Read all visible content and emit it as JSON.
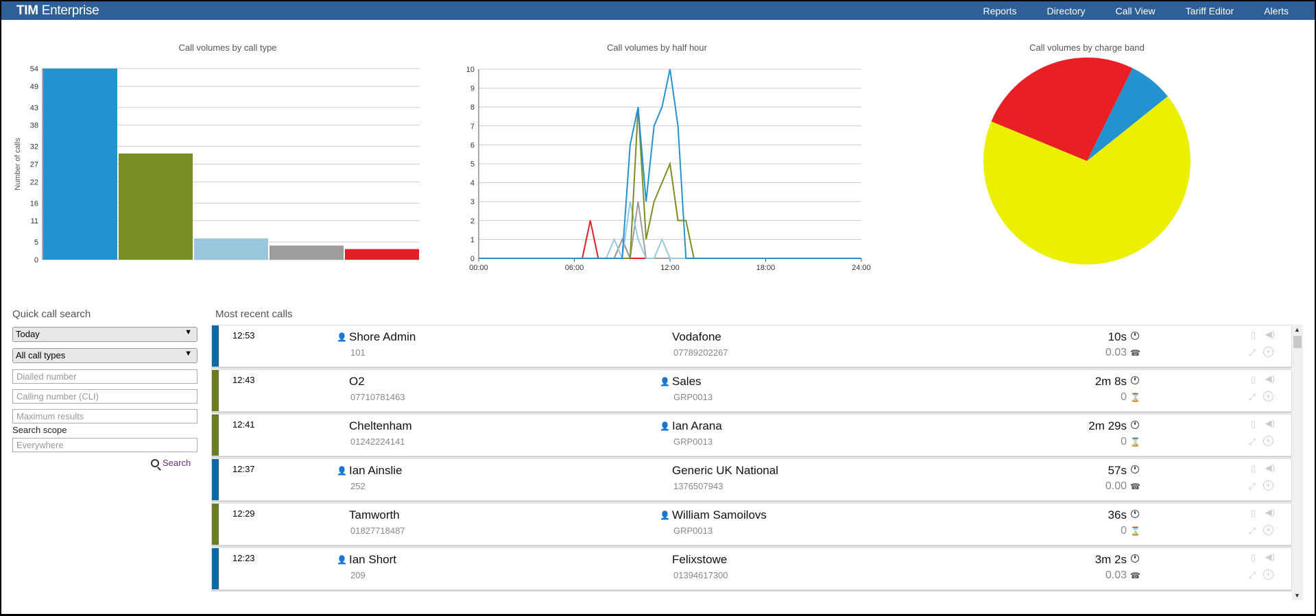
{
  "header": {
    "brand_bold": "TIM",
    "brand_rest": " Enterprise",
    "nav": [
      "Reports",
      "Directory",
      "Call View",
      "Tariff Editor",
      "Alerts"
    ]
  },
  "charts": {
    "by_call_type": {
      "title": "Call volumes by call type",
      "ylabel": "Number of calls"
    },
    "by_half_hour": {
      "title": "Call volumes by half hour"
    },
    "by_charge_band": {
      "title": "Call volumes by charge band"
    }
  },
  "chart_data": [
    {
      "type": "bar",
      "title": "Call volumes by call type",
      "ylabel": "Number of calls",
      "yticks": [
        0,
        5,
        11,
        16,
        22,
        27,
        32,
        38,
        43,
        49,
        54
      ],
      "ylim": [
        0,
        54
      ],
      "values": [
        54,
        30,
        6,
        4,
        3
      ],
      "colors": [
        "#2592d0",
        "#788f25",
        "#9ac7de",
        "#9d9d9d",
        "#e21f26"
      ],
      "grid": true
    },
    {
      "type": "line",
      "title": "Call volumes by half hour",
      "ylim": [
        0,
        10
      ],
      "yticks": [
        0,
        1,
        2,
        3,
        4,
        5,
        6,
        7,
        8,
        9,
        10
      ],
      "xticks": [
        "00:00",
        "06:00",
        "12:00",
        "18:00",
        "24:00"
      ],
      "x_hours": [
        0,
        0.5,
        1,
        1.5,
        2,
        2.5,
        3,
        3.5,
        4,
        4.5,
        5,
        5.5,
        6,
        6.5,
        7,
        7.5,
        8,
        8.5,
        9,
        9.5,
        10,
        10.5,
        11,
        11.5,
        12,
        12.5,
        13,
        13.5,
        14,
        14.5,
        15,
        15.5,
        16,
        16.5,
        17,
        17.5,
        18,
        18.5,
        19,
        19.5,
        20,
        20.5,
        21,
        21.5,
        22,
        22.5,
        23,
        23.5,
        24
      ],
      "series": [
        {
          "color": "#2592d0",
          "values": [
            0,
            0,
            0,
            0,
            0,
            0,
            0,
            0,
            0,
            0,
            0,
            0,
            0,
            0,
            0,
            0,
            0,
            0,
            0,
            6,
            8,
            3,
            7,
            8,
            10,
            7,
            0,
            0,
            0,
            0,
            0,
            0,
            0,
            0,
            0,
            0,
            0,
            0,
            0,
            0,
            0,
            0,
            0,
            0,
            0,
            0,
            0,
            0,
            0
          ]
        },
        {
          "color": "#788f25",
          "values": [
            0,
            0,
            0,
            0,
            0,
            0,
            0,
            0,
            0,
            0,
            0,
            0,
            0,
            0,
            0,
            0,
            0,
            0,
            0,
            0,
            8,
            1,
            3,
            4,
            5,
            2,
            2,
            0,
            0,
            0,
            0,
            0,
            0,
            0,
            0,
            0,
            0,
            0,
            0,
            0,
            0,
            0,
            0,
            0,
            0,
            0,
            0,
            0,
            0
          ]
        },
        {
          "color": "#9ac7de",
          "values": [
            0,
            0,
            0,
            0,
            0,
            0,
            0,
            0,
            0,
            0,
            0,
            0,
            0,
            0,
            0,
            0,
            0,
            1,
            0,
            3,
            1,
            0,
            0,
            1,
            0,
            0,
            0,
            0,
            0,
            0,
            0,
            0,
            0,
            0,
            0,
            0,
            0,
            0,
            0,
            0,
            0,
            0,
            0,
            0,
            0,
            0,
            0,
            0,
            0
          ]
        },
        {
          "color": "#9d9d9d",
          "values": [
            0,
            0,
            0,
            0,
            0,
            0,
            0,
            0,
            0,
            0,
            0,
            0,
            0,
            0,
            0,
            0,
            0,
            0,
            1,
            0,
            3,
            0,
            0,
            0,
            0,
            0,
            0,
            0,
            0,
            0,
            0,
            0,
            0,
            0,
            0,
            0,
            0,
            0,
            0,
            0,
            0,
            0,
            0,
            0,
            0,
            0,
            0,
            0,
            0
          ]
        },
        {
          "color": "#e21f26",
          "values": [
            0,
            0,
            0,
            0,
            0,
            0,
            0,
            0,
            0,
            0,
            0,
            0,
            0,
            0,
            2,
            0,
            0,
            0,
            1,
            0,
            0,
            0,
            0,
            0,
            0,
            0,
            0,
            0,
            0,
            0,
            0,
            0,
            0,
            0,
            0,
            0,
            0,
            0,
            0,
            0,
            0,
            0,
            0,
            0,
            0,
            0,
            0,
            0,
            0
          ]
        }
      ],
      "grid": true
    },
    {
      "type": "pie",
      "title": "Call volumes by charge band",
      "slices": [
        {
          "value": 7,
          "color": "#2592d0"
        },
        {
          "value": 26,
          "color": "#ea1f23"
        },
        {
          "value": 67,
          "color": "#eaf000"
        }
      ]
    }
  ],
  "search": {
    "title": "Quick call search",
    "date_select": "Today",
    "type_select": "All call types",
    "dialled_placeholder": "Dialled number",
    "cli_placeholder": "Calling number (CLI)",
    "max_placeholder": "Maximum results",
    "scope_label": "Search scope",
    "scope_placeholder": "Everywhere",
    "button": "Search"
  },
  "recent": {
    "title": "Most recent calls",
    "calls": [
      {
        "time": "12:53",
        "from_name": "Shore Admin",
        "from_num": "101",
        "from_user": true,
        "to_name": "Vodafone",
        "to_num": "07789202267",
        "to_user": false,
        "duration": "10s",
        "cost": "0.03",
        "color": "#0c69a8",
        "cost_icon": "phone"
      },
      {
        "time": "12:43",
        "from_name": "O2",
        "from_num": "07710781463",
        "from_user": false,
        "to_name": "Sales",
        "to_num": "GRP0013",
        "to_user": true,
        "duration": "2m 8s",
        "cost": "0",
        "color": "#6b7d22",
        "cost_icon": "hourglass"
      },
      {
        "time": "12:41",
        "from_name": "Cheltenham",
        "from_num": "01242224141",
        "from_user": false,
        "to_name": "Ian Arana",
        "to_num": "GRP0013",
        "to_user": true,
        "duration": "2m 29s",
        "cost": "0",
        "color": "#6b7d22",
        "cost_icon": "hourglass"
      },
      {
        "time": "12:37",
        "from_name": "Ian Ainslie",
        "from_num": "252",
        "from_user": true,
        "to_name": "Generic UK National",
        "to_num": "1376507943",
        "to_user": false,
        "duration": "57s",
        "cost": "0.00",
        "color": "#0c69a8",
        "cost_icon": "phone"
      },
      {
        "time": "12:29",
        "from_name": "Tamworth",
        "from_num": "01827718487",
        "from_user": false,
        "to_name": "William Samoilovs",
        "to_num": "GRP0013",
        "to_user": true,
        "duration": "36s",
        "cost": "0",
        "color": "#6b7d22",
        "cost_icon": "hourglass"
      },
      {
        "time": "12:23",
        "from_name": "Ian Short",
        "from_num": "209",
        "from_user": true,
        "to_name": "Felixstowe",
        "to_num": "01394617300",
        "to_user": false,
        "duration": "3m 2s",
        "cost": "0.03",
        "color": "#0c69a8",
        "cost_icon": "phone"
      }
    ]
  }
}
